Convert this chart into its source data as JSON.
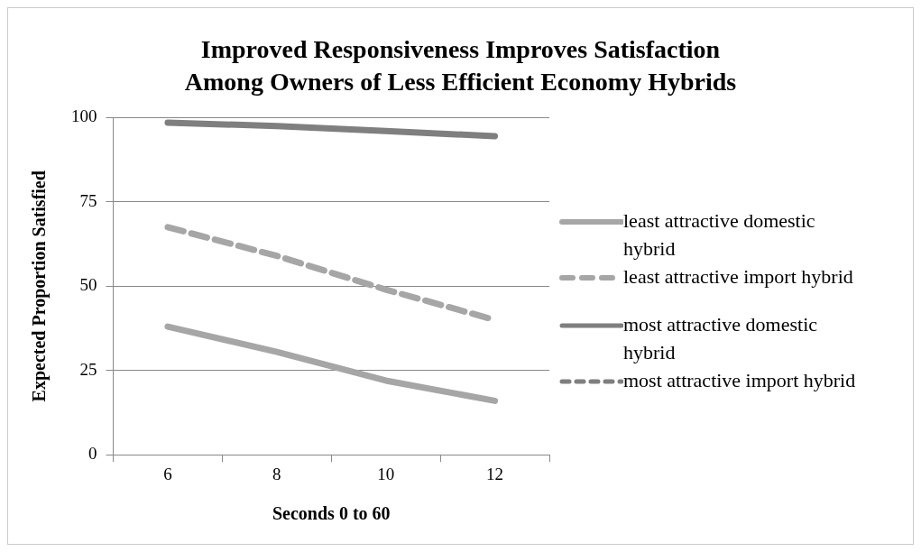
{
  "chart_data": {
    "type": "line",
    "title": "Improved Responsiveness Improves Satisfaction\nAmong Owners of Less Efficient Economy Hybrids",
    "xlabel": "Seconds 0 to 60",
    "ylabel": "Expected Proportion Satisfied",
    "categories": [
      "6",
      "8",
      "10",
      "12"
    ],
    "ylim": [
      0,
      100
    ],
    "yticks": [
      0,
      25,
      50,
      75,
      100
    ],
    "grid": "y",
    "legend": "right",
    "marker": "none",
    "series": [
      {
        "name": "least attractive domestic hybrid",
        "color": "#a6a6a6",
        "line_style": "solid",
        "values": [
          38,
          30.5,
          22,
          16
        ]
      },
      {
        "name": "least attractive import hybrid",
        "color": "#a6a6a6",
        "line_style": "dashed",
        "values": [
          67.5,
          59,
          49,
          40
        ]
      },
      {
        "name": "most attractive domestic hybrid",
        "color": "#7f7f7f",
        "line_style": "solid",
        "values": [
          98.5,
          97.5,
          96,
          94.5
        ]
      },
      {
        "name": "most attractive import hybrid",
        "color": "#7f7f7f",
        "line_style": "dashed",
        "values": [
          null,
          null,
          null,
          null
        ]
      }
    ]
  }
}
